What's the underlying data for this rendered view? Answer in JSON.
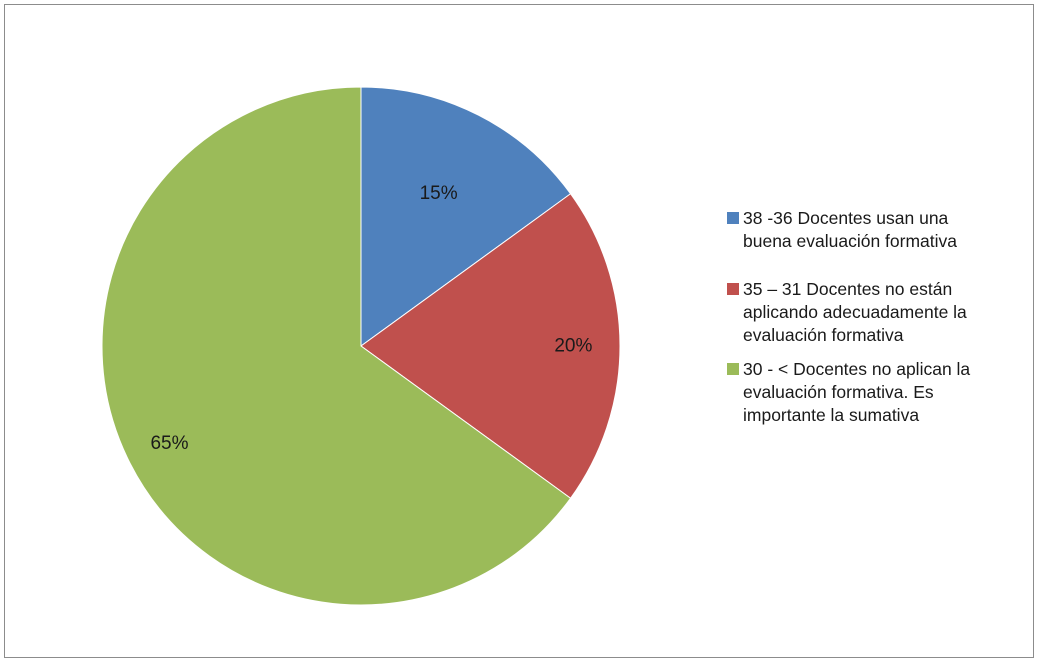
{
  "chart_data": {
    "type": "pie",
    "title": "",
    "slices": [
      {
        "label": "38 -36 Docentes usan una\nbuena evaluación  formativa",
        "value": 15,
        "display": "15%",
        "color": "#4f81bd"
      },
      {
        "label": "35 – 31  Docentes no están\naplicando adecuadamente la\nevaluación formativa",
        "value": 20,
        "display": "20%",
        "color": "#c0504d"
      },
      {
        "label": "30 - <  Docentes no aplican la\nevaluación formativa. Es\nimportante la sumativa",
        "value": 65,
        "display": "65%",
        "color": "#9bbb59"
      }
    ],
    "legend_position": "right"
  }
}
